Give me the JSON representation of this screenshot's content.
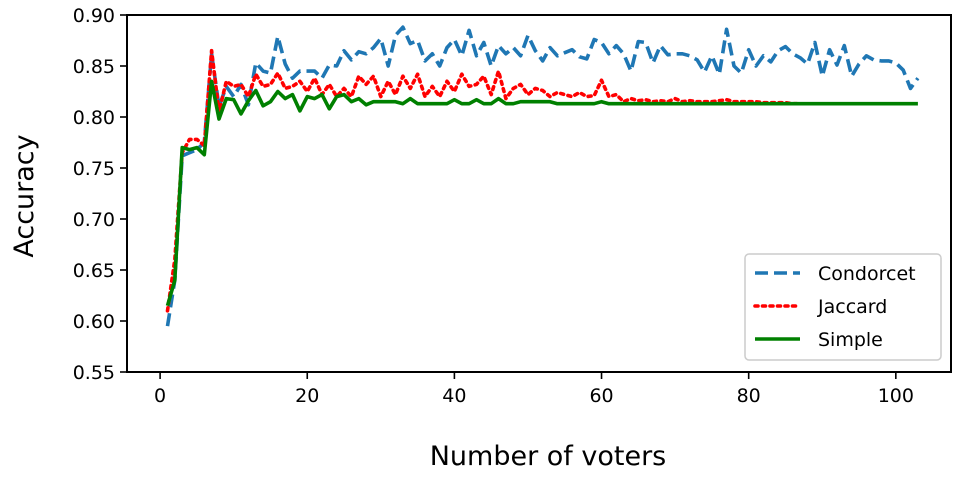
{
  "chart_data": {
    "type": "line",
    "title": "",
    "xlabel": "Number of voters",
    "ylabel": "Accuracy",
    "xlim": [
      -4.5,
      107.5
    ],
    "ylim": [
      0.55,
      0.9
    ],
    "xticks": [
      0,
      20,
      40,
      60,
      80,
      100
    ],
    "yticks": [
      0.55,
      0.6,
      0.65,
      0.7,
      0.75,
      0.8,
      0.85,
      0.9
    ],
    "xtick_labels": [
      "0",
      "20",
      "40",
      "60",
      "80",
      "100"
    ],
    "ytick_labels": [
      "0.55",
      "0.60",
      "0.65",
      "0.70",
      "0.75",
      "0.80",
      "0.85",
      "0.90"
    ],
    "grid": false,
    "legend_position": "lower right",
    "series": [
      {
        "name": "Condorcet",
        "color": "#1f77b4",
        "dash": "dashed",
        "x": [
          1,
          2,
          3,
          4,
          5,
          6,
          7,
          8,
          9,
          10,
          11,
          12,
          13,
          14,
          15,
          16,
          17,
          18,
          19,
          20,
          21,
          22,
          23,
          24,
          25,
          26,
          27,
          28,
          29,
          30,
          31,
          32,
          33,
          34,
          35,
          36,
          37,
          38,
          39,
          40,
          41,
          42,
          43,
          44,
          45,
          46,
          47,
          48,
          49,
          50,
          51,
          52,
          53,
          54,
          55,
          56,
          57,
          58,
          59,
          60,
          61,
          62,
          63,
          64,
          65,
          66,
          67,
          68,
          69,
          70,
          71,
          72,
          73,
          74,
          75,
          76,
          77,
          78,
          79,
          80,
          81,
          82,
          83,
          84,
          85,
          86,
          87,
          88,
          89,
          90,
          91,
          92,
          93,
          94,
          95,
          96,
          97,
          98,
          99,
          100,
          101,
          102,
          103
        ],
        "values": [
          0.595,
          0.64,
          0.762,
          0.765,
          0.768,
          0.775,
          0.862,
          0.81,
          0.83,
          0.82,
          0.832,
          0.812,
          0.853,
          0.845,
          0.843,
          0.879,
          0.852,
          0.838,
          0.845,
          0.845,
          0.845,
          0.838,
          0.851,
          0.85,
          0.865,
          0.856,
          0.864,
          0.862,
          0.868,
          0.877,
          0.85,
          0.88,
          0.888,
          0.872,
          0.875,
          0.855,
          0.862,
          0.85,
          0.868,
          0.876,
          0.86,
          0.885,
          0.86,
          0.873,
          0.85,
          0.87,
          0.862,
          0.868,
          0.86,
          0.88,
          0.865,
          0.855,
          0.868,
          0.86,
          0.863,
          0.866,
          0.859,
          0.857,
          0.876,
          0.873,
          0.862,
          0.87,
          0.862,
          0.845,
          0.874,
          0.873,
          0.853,
          0.87,
          0.861,
          0.862,
          0.862,
          0.86,
          0.856,
          0.844,
          0.86,
          0.842,
          0.886,
          0.85,
          0.843,
          0.866,
          0.85,
          0.86,
          0.854,
          0.865,
          0.869,
          0.862,
          0.858,
          0.852,
          0.873,
          0.84,
          0.866,
          0.851,
          0.87,
          0.84,
          0.852,
          0.86,
          0.856,
          0.855,
          0.855,
          0.853,
          0.846,
          0.828,
          0.838
        ]
      },
      {
        "name": "Jaccard",
        "color": "#ff0000",
        "dash": "dotted",
        "x": [
          1,
          2,
          3,
          4,
          5,
          6,
          7,
          8,
          9,
          10,
          11,
          12,
          13,
          14,
          15,
          16,
          17,
          18,
          19,
          20,
          21,
          22,
          23,
          24,
          25,
          26,
          27,
          28,
          29,
          30,
          31,
          32,
          33,
          34,
          35,
          36,
          37,
          38,
          39,
          40,
          41,
          42,
          43,
          44,
          45,
          46,
          47,
          48,
          49,
          50,
          51,
          52,
          53,
          54,
          55,
          56,
          57,
          58,
          59,
          60,
          61,
          62,
          63,
          64,
          65,
          66,
          67,
          68,
          69,
          70,
          71,
          72,
          73,
          74,
          75,
          76,
          77,
          78,
          79,
          80,
          81,
          82,
          83,
          84,
          85,
          86,
          87
        ],
        "values": [
          0.61,
          0.66,
          0.765,
          0.778,
          0.778,
          0.772,
          0.865,
          0.805,
          0.835,
          0.83,
          0.832,
          0.82,
          0.842,
          0.83,
          0.832,
          0.843,
          0.828,
          0.83,
          0.835,
          0.825,
          0.838,
          0.822,
          0.832,
          0.82,
          0.828,
          0.82,
          0.84,
          0.832,
          0.84,
          0.82,
          0.835,
          0.822,
          0.84,
          0.828,
          0.842,
          0.82,
          0.83,
          0.82,
          0.835,
          0.825,
          0.842,
          0.83,
          0.832,
          0.84,
          0.822,
          0.845,
          0.818,
          0.828,
          0.832,
          0.822,
          0.828,
          0.826,
          0.82,
          0.824,
          0.822,
          0.82,
          0.824,
          0.82,
          0.821,
          0.836,
          0.82,
          0.822,
          0.815,
          0.818,
          0.816,
          0.817,
          0.815,
          0.816,
          0.815,
          0.818,
          0.815,
          0.816,
          0.815,
          0.815,
          0.815,
          0.816,
          0.817,
          0.815,
          0.815,
          0.815,
          0.815,
          0.814,
          0.814,
          0.814,
          0.814,
          0.813,
          0.813
        ]
      },
      {
        "name": "Simple",
        "color": "#008000",
        "dash": "solid",
        "x": [
          1,
          2,
          3,
          4,
          5,
          6,
          7,
          8,
          9,
          10,
          11,
          12,
          13,
          14,
          15,
          16,
          17,
          18,
          19,
          20,
          21,
          22,
          23,
          24,
          25,
          26,
          27,
          28,
          29,
          30,
          31,
          32,
          33,
          34,
          35,
          36,
          37,
          38,
          39,
          40,
          41,
          42,
          43,
          44,
          45,
          46,
          47,
          48,
          49,
          50,
          51,
          52,
          53,
          54,
          55,
          56,
          57,
          58,
          59,
          60,
          61,
          62,
          63,
          64,
          65,
          66,
          67,
          68,
          69,
          70,
          71,
          72,
          73,
          74,
          75,
          76,
          77,
          78,
          79,
          80,
          81,
          82,
          83,
          84,
          85,
          86,
          87,
          88,
          89,
          90,
          91,
          92,
          93,
          94,
          95,
          96,
          97,
          98,
          99,
          100,
          101,
          102,
          103
        ],
        "values": [
          0.615,
          0.64,
          0.77,
          0.768,
          0.77,
          0.763,
          0.835,
          0.798,
          0.818,
          0.817,
          0.803,
          0.816,
          0.826,
          0.811,
          0.815,
          0.825,
          0.818,
          0.822,
          0.806,
          0.82,
          0.818,
          0.822,
          0.808,
          0.82,
          0.822,
          0.815,
          0.818,
          0.812,
          0.815,
          0.815,
          0.815,
          0.815,
          0.813,
          0.818,
          0.813,
          0.813,
          0.813,
          0.813,
          0.813,
          0.817,
          0.813,
          0.813,
          0.817,
          0.813,
          0.813,
          0.818,
          0.813,
          0.813,
          0.815,
          0.815,
          0.815,
          0.815,
          0.815,
          0.813,
          0.813,
          0.813,
          0.813,
          0.813,
          0.813,
          0.815,
          0.813,
          0.813,
          0.813,
          0.813,
          0.813,
          0.813,
          0.813,
          0.813,
          0.813,
          0.813,
          0.813,
          0.813,
          0.813,
          0.813,
          0.813,
          0.813,
          0.813,
          0.813,
          0.813,
          0.813,
          0.813,
          0.813,
          0.813,
          0.813,
          0.813,
          0.813,
          0.813,
          0.813,
          0.813,
          0.813,
          0.813,
          0.813,
          0.813,
          0.813,
          0.813,
          0.813,
          0.813,
          0.813,
          0.813,
          0.813,
          0.813,
          0.813,
          0.813
        ]
      }
    ]
  }
}
